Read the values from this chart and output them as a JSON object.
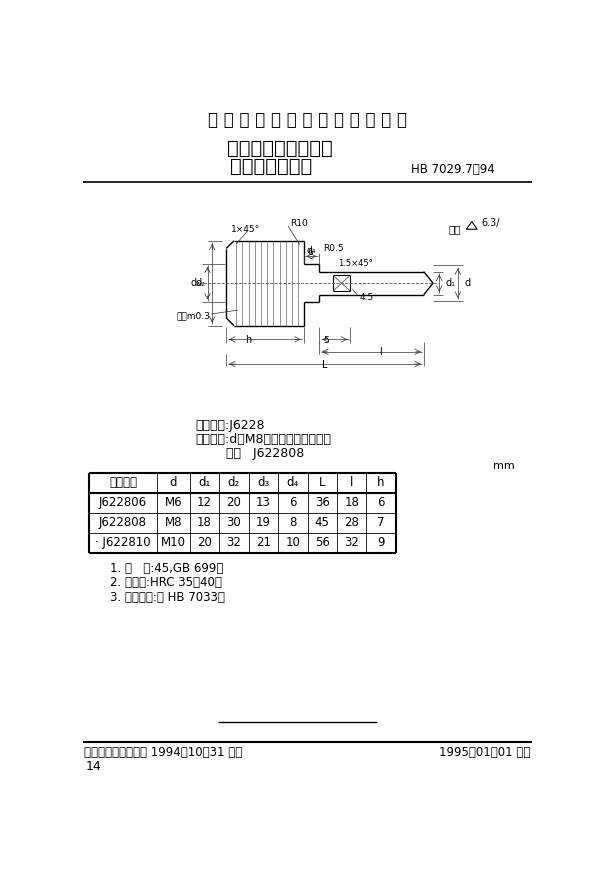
{
  "title_top": "中 华 人 民 共 和 国 航 空 工 业 标 准",
  "title_main": "夹具通用元件紧固件",
  "title_sub": "带凸肩滚花螺钉",
  "std_number": "HB 7029.7——94",
  "classification": "分类代号:J6228",
  "example_line1": "标记示例:d＝M8的带凸肩滚花螺钉：",
  "example_line2": "螺钉   J622808",
  "unit_label": "mm",
  "table_headers": [
    "标记代号",
    "d",
    "d₁",
    "d₂",
    "d₃",
    "d₄",
    "L",
    "l",
    "h"
  ],
  "table_rows": [
    [
      "J622806",
      "M6",
      "12",
      "20",
      "13",
      "6",
      "36",
      "18",
      "6"
    ],
    [
      "J622808",
      "M8",
      "18",
      "30",
      "19",
      "8",
      "45",
      "28",
      "7"
    ],
    [
      "· J622810",
      "M10",
      "20",
      "32",
      "21",
      "10",
      "56",
      "32",
      "9"
    ]
  ],
  "notes": [
    "1. 材   料:45,GB 699。",
    "2. 热处理:HRC 35～40。",
    "3. 技术条件:按 HB 7033。"
  ],
  "footer_left": "中国航空工业总公司 1994－10－31 发布",
  "footer_right": "1995－01－01 实施",
  "page_number": "14",
  "bg_color": "#ffffff"
}
